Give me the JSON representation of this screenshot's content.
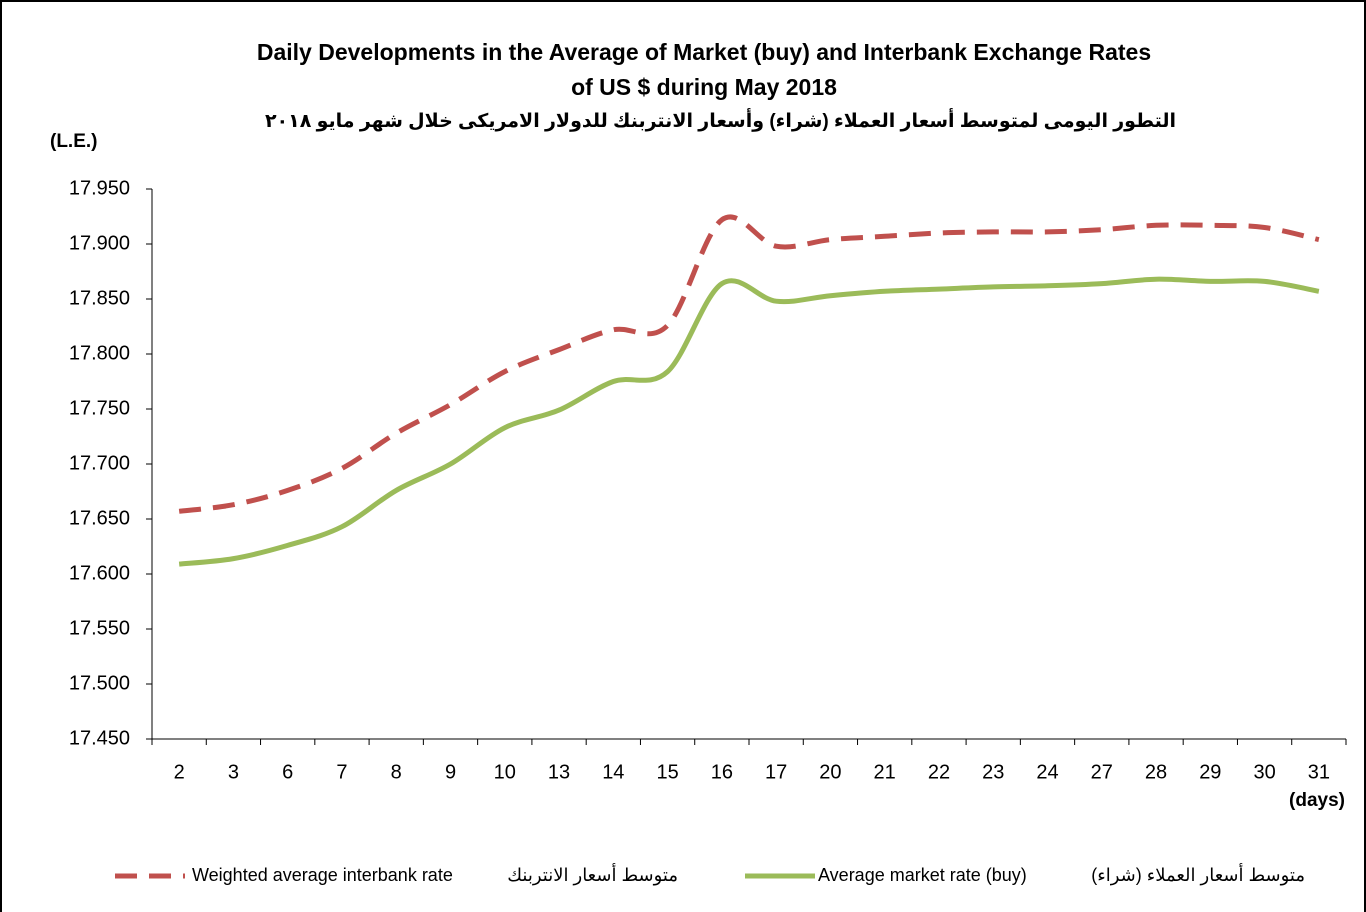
{
  "chart_data": {
    "type": "line",
    "title": "Daily Developments in the Average of Market (buy) and Interbank Exchange Rates",
    "title_line2": "of US $ during May 2018",
    "subtitle": "التطور اليومى لمتوسط أسعار العملاء (شراء) وأسعار الانتربنك للدولار الامريكى خلال شهر مايو ٢٠١٨",
    "y_label": "(L.E.)",
    "x_label": "(days)",
    "categories": [
      "2",
      "3",
      "6",
      "7",
      "8",
      "9",
      "10",
      "13",
      "14",
      "15",
      "16",
      "17",
      "20",
      "21",
      "22",
      "23",
      "24",
      "27",
      "28",
      "29",
      "30",
      "31"
    ],
    "series": [
      {
        "name": "Weighted average interbank rate",
        "name_ar": "متوسط أسعار الانتربنك",
        "color": "#c0504d",
        "dashed": true,
        "values": [
          17.657,
          17.663,
          17.676,
          17.696,
          17.728,
          17.754,
          17.784,
          17.804,
          17.822,
          17.826,
          17.922,
          17.898,
          17.904,
          17.907,
          17.91,
          17.911,
          17.911,
          17.913,
          17.917,
          17.917,
          17.915,
          17.904
        ]
      },
      {
        "name": "Average market rate (buy)",
        "name_ar": "متوسط أسعار العملاء (شراء)",
        "color": "#9bbb59",
        "dashed": false,
        "values": [
          17.609,
          17.614,
          17.626,
          17.643,
          17.676,
          17.7,
          17.733,
          17.749,
          17.775,
          17.784,
          17.864,
          17.848,
          17.853,
          17.857,
          17.859,
          17.861,
          17.862,
          17.864,
          17.868,
          17.866,
          17.866,
          17.857
        ]
      }
    ],
    "ylim": [
      17.45,
      17.95
    ],
    "yticks": [
      {
        "value": 17.45,
        "label": "17.450"
      },
      {
        "value": 17.5,
        "label": "17.500"
      },
      {
        "value": 17.55,
        "label": "17.550"
      },
      {
        "value": 17.6,
        "label": "17.600"
      },
      {
        "value": 17.65,
        "label": "17.650"
      },
      {
        "value": 17.7,
        "label": "17.700"
      },
      {
        "value": 17.75,
        "label": "17.750"
      },
      {
        "value": 17.8,
        "label": "17.800"
      },
      {
        "value": 17.85,
        "label": "17.850"
      },
      {
        "value": 17.9,
        "label": "17.900"
      },
      {
        "value": 17.95,
        "label": "17.950"
      }
    ],
    "grid": false
  }
}
